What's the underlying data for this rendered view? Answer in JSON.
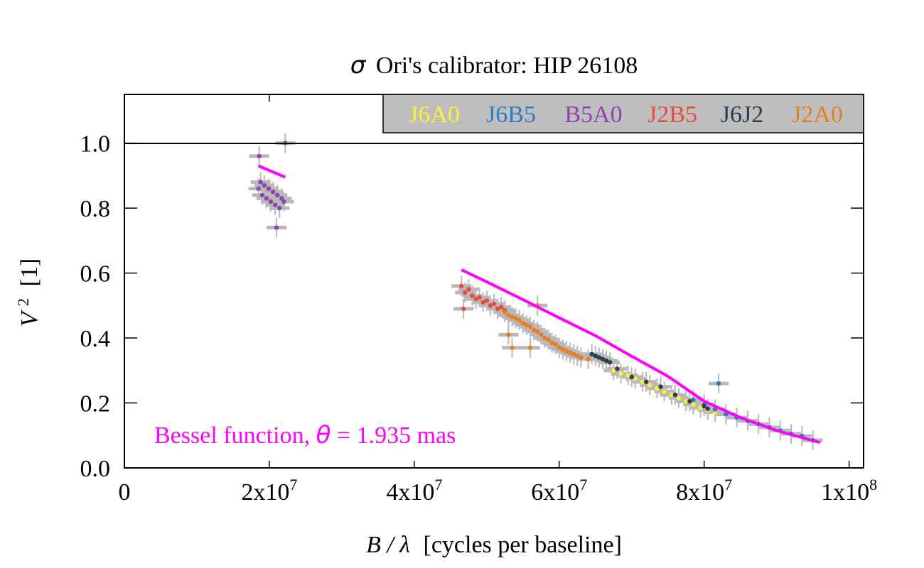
{
  "chart_data": {
    "type": "scatter",
    "title_symbol": "σ",
    "title": "Ori's calibrator: HIP 26108",
    "xlabel_symbol": "B / λ",
    "xlabel": "[cycles per baseline]",
    "ylabel_symbol": "V",
    "ylabel_sup": "2",
    "ylabel": "[1]",
    "xlim": [
      0,
      102000000
    ],
    "ylim": [
      0,
      1.15
    ],
    "x_ticks": [
      {
        "value": 0,
        "base": "0",
        "exp": ""
      },
      {
        "value": 20000000,
        "base": "2x10",
        "exp": "7"
      },
      {
        "value": 40000000,
        "base": "4x10",
        "exp": "7"
      },
      {
        "value": 60000000,
        "base": "6x10",
        "exp": "7"
      },
      {
        "value": 80000000,
        "base": "8x10",
        "exp": "7"
      },
      {
        "value": 100000000,
        "base": "1x10",
        "exp": "8"
      }
    ],
    "y_ticks": [
      {
        "value": 0,
        "label": "0.0"
      },
      {
        "value": 0.2,
        "label": "0.2"
      },
      {
        "value": 0.4,
        "label": "0.4"
      },
      {
        "value": 0.6,
        "label": "0.6"
      },
      {
        "value": 0.8,
        "label": "0.8"
      },
      {
        "value": 1.0,
        "label": "1.0"
      }
    ],
    "reference_line": 1.0,
    "grid": false,
    "legend_position": "top-right",
    "legend_background": "#bebebe",
    "series": [
      {
        "name": "J6A0",
        "color": "#ffef3a",
        "points": [
          [
            67500000,
            0.3
          ],
          [
            68500000,
            0.29
          ],
          [
            69500000,
            0.285
          ],
          [
            70500000,
            0.275
          ],
          [
            71500000,
            0.265
          ],
          [
            72500000,
            0.255
          ],
          [
            73500000,
            0.245
          ],
          [
            74500000,
            0.235
          ],
          [
            75500000,
            0.225
          ],
          [
            76500000,
            0.215
          ],
          [
            77500000,
            0.205
          ],
          [
            78500000,
            0.195
          ],
          [
            79500000,
            0.185
          ],
          [
            80500000,
            0.178
          ],
          [
            81500000,
            0.172
          ]
        ]
      },
      {
        "name": "J6B5",
        "color": "#2d7cc1",
        "points": [
          [
            78500000,
            0.21
          ],
          [
            80000000,
            0.195
          ],
          [
            81500000,
            0.18
          ],
          [
            83000000,
            0.165
          ],
          [
            84500000,
            0.155
          ],
          [
            86000000,
            0.145
          ],
          [
            87500000,
            0.135
          ],
          [
            89000000,
            0.125
          ],
          [
            90500000,
            0.115
          ],
          [
            92000000,
            0.105
          ],
          [
            93500000,
            0.098
          ],
          [
            95000000,
            0.085
          ],
          [
            82000000,
            0.26
          ]
        ]
      },
      {
        "name": "B5A0",
        "color": "#8e44ad",
        "points": [
          [
            18500000,
            0.86
          ],
          [
            18800000,
            0.88
          ],
          [
            19000000,
            0.84
          ],
          [
            19300000,
            0.87
          ],
          [
            19600000,
            0.83
          ],
          [
            19900000,
            0.86
          ],
          [
            20200000,
            0.82
          ],
          [
            20500000,
            0.85
          ],
          [
            20800000,
            0.81
          ],
          [
            21100000,
            0.84
          ],
          [
            21400000,
            0.8
          ],
          [
            21700000,
            0.83
          ],
          [
            22000000,
            0.82
          ],
          [
            18600000,
            0.96
          ],
          [
            21000000,
            0.74
          ],
          [
            22200000,
            1.0
          ]
        ]
      },
      {
        "name": "J2B5",
        "color": "#e74c3c",
        "points": [
          [
            46500000,
            0.56
          ],
          [
            47000000,
            0.54
          ],
          [
            47500000,
            0.55
          ],
          [
            48000000,
            0.53
          ],
          [
            48500000,
            0.52
          ],
          [
            49000000,
            0.525
          ],
          [
            49500000,
            0.51
          ],
          [
            50000000,
            0.515
          ],
          [
            50500000,
            0.5
          ],
          [
            51000000,
            0.505
          ],
          [
            51500000,
            0.49
          ],
          [
            52000000,
            0.495
          ],
          [
            52500000,
            0.485
          ],
          [
            46800000,
            0.49
          ]
        ]
      },
      {
        "name": "J6J2",
        "color": "#2c3e50",
        "points": [
          [
            64500000,
            0.35
          ],
          [
            65000000,
            0.345
          ],
          [
            65500000,
            0.34
          ],
          [
            66000000,
            0.335
          ],
          [
            66500000,
            0.33
          ],
          [
            67000000,
            0.325
          ],
          [
            68000000,
            0.305
          ],
          [
            70000000,
            0.28
          ],
          [
            72000000,
            0.265
          ],
          [
            74000000,
            0.25
          ],
          [
            76000000,
            0.225
          ],
          [
            78000000,
            0.205
          ],
          [
            80000000,
            0.19
          ],
          [
            80500000,
            0.182
          ]
        ]
      },
      {
        "name": "J2A0",
        "color": "#e67e22",
        "points": [
          [
            52500000,
            0.48
          ],
          [
            53000000,
            0.47
          ],
          [
            53500000,
            0.465
          ],
          [
            54000000,
            0.46
          ],
          [
            54500000,
            0.455
          ],
          [
            55000000,
            0.445
          ],
          [
            55500000,
            0.44
          ],
          [
            56000000,
            0.435
          ],
          [
            56500000,
            0.425
          ],
          [
            57000000,
            0.42
          ],
          [
            57500000,
            0.41
          ],
          [
            58000000,
            0.4
          ],
          [
            58500000,
            0.395
          ],
          [
            59000000,
            0.385
          ],
          [
            59500000,
            0.38
          ],
          [
            60000000,
            0.37
          ],
          [
            60500000,
            0.365
          ],
          [
            61000000,
            0.36
          ],
          [
            61500000,
            0.355
          ],
          [
            62000000,
            0.35
          ],
          [
            62500000,
            0.345
          ],
          [
            63000000,
            0.34
          ],
          [
            64000000,
            0.335
          ],
          [
            53000000,
            0.41
          ],
          [
            53500000,
            0.37
          ],
          [
            56000000,
            0.37
          ],
          [
            57000000,
            0.5
          ]
        ]
      }
    ],
    "model": {
      "color": "#ff00ff",
      "label_prefix": "Bessel function, ",
      "label_symbol": "θ",
      "label_suffix": " = 1.935 mas",
      "segments": [
        [
          [
            18500000,
            0.93
          ],
          [
            22200000,
            0.895
          ]
        ],
        [
          [
            46500000,
            0.61
          ],
          [
            50000000,
            0.573
          ],
          [
            55000000,
            0.518
          ],
          [
            60000000,
            0.462
          ],
          [
            65000000,
            0.407
          ],
          [
            70000000,
            0.344
          ],
          [
            75000000,
            0.282
          ],
          [
            80000000,
            0.205
          ],
          [
            85000000,
            0.155
          ],
          [
            90000000,
            0.115
          ],
          [
            96000000,
            0.078
          ]
        ]
      ]
    }
  }
}
